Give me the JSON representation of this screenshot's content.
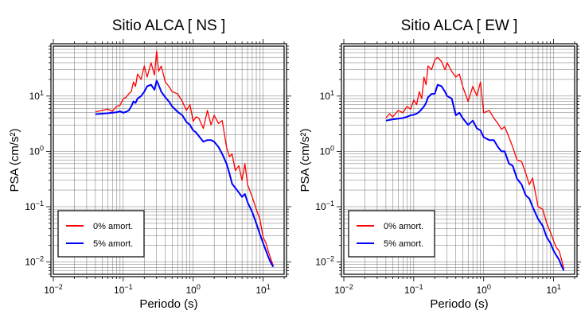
{
  "colors": {
    "undamped": "#ff0000",
    "damped": "#0000ff",
    "grid": "#000000"
  },
  "chart_data": [
    {
      "type": "line",
      "title": "Sitio ALCA [ NS ]",
      "xlabel": "Periodo (s)",
      "ylabel": "PSA (cm/s²)",
      "xscale": "log",
      "yscale": "log",
      "xlim": [
        0.01,
        20
      ],
      "ylim": [
        0.006,
        80
      ],
      "grid": true,
      "legend_placement": "bottom-left",
      "xticks": [
        {
          "value": 0.01,
          "base": "10",
          "exp": "−2"
        },
        {
          "value": 0.1,
          "base": "10",
          "exp": "−1"
        },
        {
          "value": 1,
          "base": "10",
          "exp": "0"
        },
        {
          "value": 10,
          "base": "10",
          "exp": "1"
        }
      ],
      "yticks": [
        {
          "value": 0.01,
          "base": "10",
          "exp": "−2"
        },
        {
          "value": 0.1,
          "base": "10",
          "exp": "−1"
        },
        {
          "value": 1,
          "base": "10",
          "exp": "0"
        },
        {
          "value": 10,
          "base": "10",
          "exp": "1"
        }
      ],
      "series": [
        {
          "name": "0% amort.",
          "color": "#ff0000",
          "x": [
            0.04,
            0.05,
            0.06,
            0.07,
            0.08,
            0.09,
            0.1,
            0.11,
            0.12,
            0.13,
            0.14,
            0.15,
            0.16,
            0.18,
            0.2,
            0.22,
            0.25,
            0.28,
            0.3,
            0.32,
            0.35,
            0.4,
            0.45,
            0.5,
            0.6,
            0.7,
            0.8,
            0.9,
            1.0,
            1.1,
            1.2,
            1.4,
            1.6,
            1.8,
            2.0,
            2.3,
            2.6,
            3.0,
            3.3,
            3.6,
            4.0,
            4.5,
            5.0,
            5.5,
            6.0,
            7.0,
            8.0,
            9.0,
            10,
            11,
            12,
            13,
            14
          ],
          "y": [
            5.2,
            5.5,
            5.8,
            5.3,
            6.5,
            6.8,
            9,
            9.5,
            11,
            12,
            18,
            15,
            25,
            20,
            35,
            22,
            40,
            24,
            65,
            28,
            35,
            18,
            15,
            12,
            11,
            8,
            5.5,
            7,
            3.5,
            4.2,
            4.0,
            2.6,
            5.5,
            3.0,
            4.5,
            3.2,
            3.6,
            1.2,
            0.8,
            0.9,
            0.45,
            0.55,
            0.3,
            0.6,
            0.25,
            0.15,
            0.09,
            0.06,
            0.028,
            0.022,
            0.015,
            0.011,
            0.0085
          ]
        },
        {
          "name": "5% amort.",
          "color": "#0000ff",
          "x": [
            0.04,
            0.05,
            0.06,
            0.07,
            0.08,
            0.09,
            0.1,
            0.11,
            0.12,
            0.13,
            0.14,
            0.15,
            0.16,
            0.18,
            0.2,
            0.22,
            0.25,
            0.28,
            0.3,
            0.32,
            0.35,
            0.4,
            0.45,
            0.5,
            0.6,
            0.7,
            0.8,
            0.9,
            1.0,
            1.1,
            1.2,
            1.4,
            1.6,
            1.8,
            2.0,
            2.3,
            2.6,
            3.0,
            3.3,
            3.6,
            4.0,
            4.5,
            5.0,
            5.5,
            6.0,
            7.0,
            8.0,
            9.0,
            10,
            11,
            12,
            13,
            14
          ],
          "y": [
            4.7,
            4.8,
            4.9,
            5.0,
            5.1,
            5.3,
            5.0,
            5.2,
            5.5,
            6.5,
            8.0,
            7.5,
            9.0,
            10,
            12,
            15,
            16,
            13,
            19,
            16,
            12,
            9.5,
            8,
            6.5,
            5.2,
            4.5,
            3.4,
            3.0,
            2.4,
            2.2,
            1.9,
            1.5,
            1.6,
            1.6,
            1.5,
            1.2,
            0.9,
            0.6,
            0.4,
            0.26,
            0.22,
            0.18,
            0.15,
            0.17,
            0.12,
            0.08,
            0.05,
            0.032,
            0.022,
            0.016,
            0.012,
            0.0095,
            0.0082
          ]
        }
      ]
    },
    {
      "type": "line",
      "title": "Sitio ALCA [ EW ]",
      "xlabel": "Periodo (s)",
      "ylabel": "PSA (cm/s²)",
      "xscale": "log",
      "yscale": "log",
      "xlim": [
        0.01,
        20
      ],
      "ylim": [
        0.006,
        80
      ],
      "grid": true,
      "legend_placement": "bottom-left",
      "xticks": [
        {
          "value": 0.01,
          "base": "10",
          "exp": "−2"
        },
        {
          "value": 0.1,
          "base": "10",
          "exp": "−1"
        },
        {
          "value": 1,
          "base": "10",
          "exp": "0"
        },
        {
          "value": 10,
          "base": "10",
          "exp": "1"
        }
      ],
      "yticks": [
        {
          "value": 0.01,
          "base": "10",
          "exp": "−2"
        },
        {
          "value": 0.1,
          "base": "10",
          "exp": "−1"
        },
        {
          "value": 1,
          "base": "10",
          "exp": "0"
        },
        {
          "value": 10,
          "base": "10",
          "exp": "1"
        }
      ],
      "series": [
        {
          "name": "0% amort.",
          "color": "#ff0000",
          "x": [
            0.04,
            0.045,
            0.05,
            0.06,
            0.07,
            0.08,
            0.09,
            0.1,
            0.11,
            0.12,
            0.13,
            0.14,
            0.15,
            0.16,
            0.18,
            0.2,
            0.22,
            0.25,
            0.28,
            0.3,
            0.35,
            0.4,
            0.45,
            0.5,
            0.6,
            0.7,
            0.8,
            0.9,
            1.0,
            1.2,
            1.4,
            1.6,
            1.8,
            2.0,
            2.3,
            2.6,
            3.0,
            3.5,
            4.0,
            4.5,
            5.0,
            6.0,
            7.0,
            8.0,
            9.0,
            10,
            11,
            12,
            13,
            14
          ],
          "y": [
            4.0,
            4.8,
            4.2,
            5.5,
            5.0,
            6.5,
            5.8,
            8.5,
            7.0,
            12,
            9,
            22,
            16,
            35,
            30,
            45,
            50,
            42,
            30,
            40,
            28,
            22,
            25,
            15,
            8,
            15,
            10,
            18,
            5,
            5.5,
            4.0,
            3.2,
            2.5,
            2.8,
            1.8,
            1.2,
            0.7,
            0.65,
            0.4,
            0.25,
            0.33,
            0.1,
            0.09,
            0.05,
            0.035,
            0.024,
            0.018,
            0.016,
            0.011,
            0.0075
          ]
        },
        {
          "name": "5% amort.",
          "color": "#0000ff",
          "x": [
            0.04,
            0.045,
            0.05,
            0.06,
            0.07,
            0.08,
            0.09,
            0.1,
            0.11,
            0.12,
            0.13,
            0.14,
            0.15,
            0.16,
            0.18,
            0.2,
            0.22,
            0.25,
            0.28,
            0.3,
            0.35,
            0.4,
            0.45,
            0.5,
            0.6,
            0.7,
            0.8,
            0.9,
            1.0,
            1.2,
            1.4,
            1.6,
            1.8,
            2.0,
            2.3,
            2.6,
            3.0,
            3.5,
            4.0,
            4.5,
            5.0,
            6.0,
            7.0,
            8.0,
            9.0,
            10,
            11,
            12,
            13,
            14
          ],
          "y": [
            3.6,
            3.7,
            3.8,
            3.9,
            4.0,
            4.2,
            4.5,
            4.6,
            4.8,
            5.2,
            5.8,
            6.5,
            7.5,
            9.5,
            11,
            11,
            16,
            15,
            12,
            10,
            9.0,
            4.5,
            5.0,
            4.0,
            3.0,
            3.6,
            2.6,
            2.4,
            1.8,
            1.6,
            1.6,
            1.2,
            1.0,
            1.0,
            0.6,
            0.55,
            0.32,
            0.25,
            0.16,
            0.14,
            0.1,
            0.06,
            0.045,
            0.028,
            0.022,
            0.016,
            0.013,
            0.011,
            0.0085,
            0.007
          ]
        }
      ]
    }
  ]
}
